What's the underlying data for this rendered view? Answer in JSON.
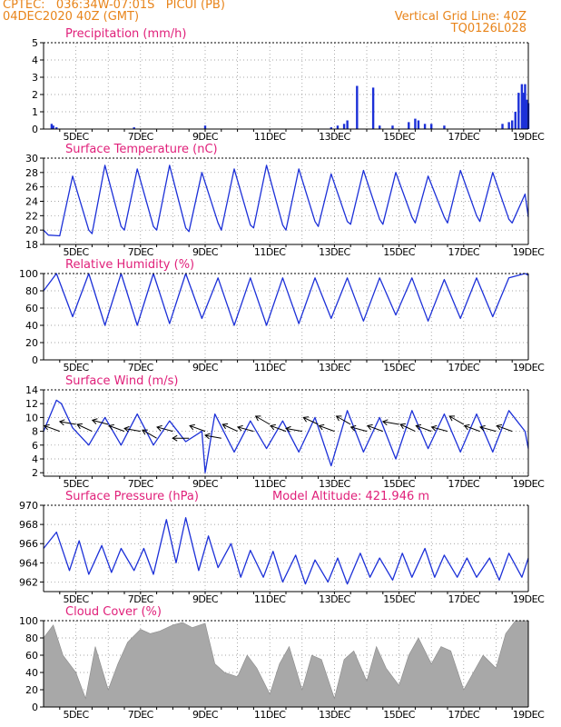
{
  "header": {
    "line1": "CPTEC:   036:34W-07:01S   PICUI (PB)",
    "line2": "04DEC2020 40Z (GMT)",
    "grid_note": "Vertical Grid Line: 40Z",
    "run_code": "TQ0126L028"
  },
  "colors": {
    "header": "#e8841a",
    "title": "#e0207a",
    "line": "#1c30d8",
    "cloud": "#a8a8a8",
    "arrow": "#000000"
  },
  "chart_data": [
    {
      "type": "bar",
      "title": "Precipitation (mm/h)",
      "ylim": [
        0,
        5
      ],
      "yticks": [
        "0",
        "1",
        "2",
        "3",
        "4",
        "5"
      ],
      "xticks": [
        "5DEC",
        "7DEC",
        "9DEC",
        "11DEC",
        "13DEC",
        "15DEC",
        "17DEC",
        "19DEC"
      ],
      "grid": true,
      "x": [
        4.25,
        4.3,
        4.4,
        6.8,
        9.0,
        12.9,
        13.1,
        13.3,
        13.4,
        13.7,
        14.2,
        14.4,
        14.8,
        15.3,
        15.5,
        15.6,
        15.8,
        16.0,
        16.4,
        18.2,
        18.4,
        18.5,
        18.6,
        18.7,
        18.8,
        18.85,
        18.9,
        18.95,
        19.0
      ],
      "values": [
        0.3,
        0.2,
        0.1,
        0.1,
        0.2,
        0.1,
        0.2,
        0.3,
        0.5,
        2.5,
        2.4,
        0.2,
        0.2,
        0.4,
        0.6,
        0.5,
        0.3,
        0.3,
        0.2,
        0.3,
        0.4,
        0.5,
        1.0,
        2.1,
        2.6,
        2.1,
        2.6,
        1.7,
        1.5
      ]
    },
    {
      "type": "line",
      "title": "Surface Temperature (nC)",
      "ylim": [
        18,
        30
      ],
      "yticks": [
        "18",
        "20",
        "22",
        "24",
        "26",
        "28",
        "30"
      ],
      "xticks": [
        "5DEC",
        "7DEC",
        "9DEC",
        "11DEC",
        "13DEC",
        "15DEC",
        "17DEC",
        "19DEC"
      ],
      "grid": true,
      "x": [
        4.0,
        4.15,
        4.5,
        4.9,
        5.4,
        5.5,
        5.9,
        6.4,
        6.5,
        6.9,
        7.4,
        7.5,
        7.9,
        8.4,
        8.5,
        8.9,
        9.4,
        9.5,
        9.9,
        10.4,
        10.5,
        10.9,
        11.4,
        11.5,
        11.9,
        12.4,
        12.5,
        12.9,
        13.4,
        13.5,
        13.9,
        14.4,
        14.5,
        14.9,
        15.4,
        15.5,
        15.9,
        16.4,
        16.5,
        16.9,
        17.4,
        17.5,
        17.9,
        18.4,
        18.5,
        18.9,
        19.0
      ],
      "values": [
        20.0,
        19.3,
        19.2,
        27.5,
        20.0,
        19.5,
        29.0,
        20.5,
        20.0,
        28.5,
        20.5,
        20.0,
        29.0,
        20.3,
        19.8,
        28.0,
        21.0,
        20.0,
        28.5,
        20.7,
        20.3,
        29.0,
        20.7,
        20.0,
        28.5,
        21.2,
        20.5,
        27.8,
        21.2,
        20.8,
        28.3,
        21.5,
        20.8,
        28.0,
        21.8,
        21.0,
        27.5,
        21.8,
        21.0,
        28.3,
        22.0,
        21.2,
        28.0,
        21.5,
        21.0,
        25.0,
        21.8
      ]
    },
    {
      "type": "line",
      "title": "Relative Humidity (%)",
      "ylim": [
        0,
        100
      ],
      "yticks": [
        "0",
        "20",
        "40",
        "60",
        "80",
        "100"
      ],
      "xticks": [
        "5DEC",
        "7DEC",
        "9DEC",
        "11DEC",
        "13DEC",
        "15DEC",
        "17DEC",
        "19DEC"
      ],
      "grid": true,
      "x": [
        4.0,
        4.4,
        4.9,
        5.4,
        5.9,
        6.4,
        6.9,
        7.4,
        7.9,
        8.4,
        8.9,
        9.4,
        9.9,
        10.4,
        10.9,
        11.4,
        11.9,
        12.4,
        12.9,
        13.4,
        13.9,
        14.4,
        14.9,
        15.4,
        15.9,
        16.4,
        16.9,
        17.4,
        17.9,
        18.4,
        18.9,
        19.0
      ],
      "values": [
        80,
        100,
        50,
        100,
        40,
        100,
        40,
        100,
        42,
        100,
        48,
        95,
        40,
        95,
        40,
        95,
        42,
        95,
        48,
        95,
        45,
        95,
        52,
        95,
        45,
        93,
        48,
        95,
        50,
        95,
        100,
        98
      ]
    },
    {
      "type": "line",
      "title": "Surface Wind (m/s)",
      "ylim": [
        1.5,
        14
      ],
      "yticks": [
        "2",
        "4",
        "6",
        "8",
        "10",
        "12",
        "14"
      ],
      "xticks": [
        "5DEC",
        "7DEC",
        "9DEC",
        "11DEC",
        "13DEC",
        "15DEC",
        "17DEC",
        "19DEC"
      ],
      "grid": true,
      "x": [
        4.0,
        4.4,
        4.55,
        4.9,
        5.4,
        5.9,
        6.4,
        6.9,
        7.4,
        7.9,
        8.4,
        8.9,
        9.0,
        9.3,
        9.9,
        10.4,
        10.9,
        11.4,
        11.9,
        12.4,
        12.9,
        13.4,
        13.9,
        14.4,
        14.9,
        15.4,
        15.9,
        16.4,
        16.9,
        17.4,
        17.9,
        18.4,
        18.9,
        19.0
      ],
      "values": [
        8.0,
        12.5,
        12.0,
        8.5,
        6.0,
        10.0,
        6.0,
        10.5,
        6.0,
        9.5,
        6.5,
        8.0,
        2.0,
        10.5,
        5.0,
        9.5,
        5.5,
        9.5,
        5.0,
        10.0,
        3.0,
        11.0,
        5.0,
        10.0,
        4.0,
        11.0,
        5.5,
        10.5,
        5.0,
        10.5,
        5.0,
        11.0,
        8.0,
        5.5
      ],
      "arrows": {
        "x": [
          4.5,
          5.0,
          5.5,
          6.0,
          6.5,
          7.0,
          7.5,
          8.0,
          8.5,
          9.0,
          9.5,
          10.0,
          10.5,
          11.0,
          11.5,
          12.0,
          12.5,
          13.0,
          13.5,
          14.0,
          14.5,
          15.0,
          15.5,
          16.0,
          16.5,
          17.0,
          17.5,
          18.0,
          18.5
        ],
        "dir_deg": [
          160,
          170,
          155,
          165,
          160,
          170,
          150,
          165,
          180,
          160,
          170,
          155,
          165,
          150,
          160,
          170,
          155,
          160,
          150,
          165,
          160,
          170,
          155,
          160,
          165,
          150,
          160,
          165,
          160
        ],
        "speed": [
          8,
          9,
          8,
          9,
          8,
          8,
          7,
          8,
          7,
          8,
          7,
          8,
          8,
          9,
          8,
          8,
          9,
          8,
          9,
          8,
          8,
          9,
          8,
          8,
          8,
          9,
          8,
          8,
          8
        ]
      }
    },
    {
      "type": "line",
      "title": "Surface Pressure (hPa)",
      "annotation": "Model Altitude: 421.946 m",
      "ylim": [
        961,
        970
      ],
      "yticks": [
        "962",
        "964",
        "966",
        "968",
        "970"
      ],
      "xticks": [
        "5DEC",
        "7DEC",
        "9DEC",
        "11DEC",
        "13DEC",
        "15DEC",
        "17DEC",
        "19DEC"
      ],
      "grid": true,
      "x": [
        4.0,
        4.4,
        4.8,
        5.1,
        5.4,
        5.8,
        6.1,
        6.4,
        6.8,
        7.1,
        7.4,
        7.8,
        8.1,
        8.4,
        8.8,
        9.1,
        9.4,
        9.8,
        10.1,
        10.4,
        10.8,
        11.1,
        11.4,
        11.8,
        12.1,
        12.4,
        12.8,
        13.1,
        13.4,
        13.8,
        14.1,
        14.4,
        14.8,
        15.1,
        15.4,
        15.8,
        16.1,
        16.4,
        16.8,
        17.1,
        17.4,
        17.8,
        18.1,
        18.4,
        18.8,
        19.0
      ],
      "values": [
        965.5,
        967.2,
        963.2,
        966.3,
        962.8,
        965.8,
        963.0,
        965.5,
        963.2,
        965.5,
        962.8,
        968.5,
        964.0,
        968.7,
        963.2,
        966.8,
        963.5,
        966.0,
        962.5,
        965.3,
        962.5,
        965.2,
        962.0,
        964.8,
        961.8,
        964.3,
        962.0,
        964.5,
        961.8,
        965.0,
        962.5,
        964.5,
        962.2,
        965.0,
        962.5,
        965.5,
        962.5,
        964.8,
        962.5,
        964.5,
        962.5,
        964.5,
        962.2,
        965.0,
        962.5,
        964.5
      ]
    },
    {
      "type": "area",
      "title": "Cloud Cover (%)",
      "ylim": [
        0,
        100
      ],
      "yticks": [
        "0",
        "20",
        "40",
        "60",
        "80",
        "100"
      ],
      "xticks": [
        "5DEC",
        "7DEC",
        "9DEC",
        "11DEC",
        "13DEC",
        "15DEC",
        "17DEC",
        "19DEC"
      ],
      "grid": true,
      "x": [
        4.0,
        4.3,
        4.6,
        5.0,
        5.3,
        5.6,
        6.0,
        6.3,
        6.6,
        7.0,
        7.3,
        7.6,
        8.0,
        8.3,
        8.6,
        9.0,
        9.3,
        9.6,
        10.0,
        10.3,
        10.6,
        11.0,
        11.3,
        11.6,
        12.0,
        12.3,
        12.6,
        13.0,
        13.3,
        13.6,
        14.0,
        14.3,
        14.6,
        15.0,
        15.3,
        15.6,
        16.0,
        16.3,
        16.6,
        17.0,
        17.3,
        17.6,
        18.0,
        18.3,
        18.6,
        19.0
      ],
      "values": [
        80,
        95,
        60,
        40,
        10,
        70,
        20,
        50,
        75,
        90,
        85,
        88,
        95,
        98,
        92,
        97,
        50,
        40,
        35,
        60,
        45,
        15,
        50,
        70,
        20,
        60,
        55,
        10,
        55,
        65,
        30,
        70,
        45,
        25,
        60,
        80,
        50,
        70,
        65,
        20,
        40,
        60,
        45,
        85,
        100,
        100
      ]
    }
  ]
}
